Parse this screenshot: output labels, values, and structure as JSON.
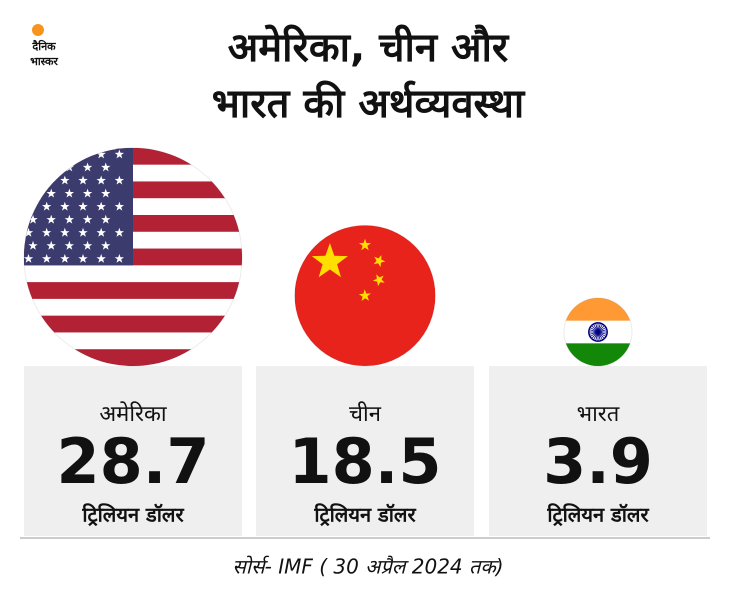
{
  "logo": [
    "दैनिक",
    "भास्कर"
  ],
  "chart_data": {
    "type": "bubble",
    "title": [
      "अमेरिका, चीन और",
      "भारत की अर्थव्यवस्था"
    ],
    "categories": [
      "अमेरिका",
      "चीन",
      "भारत"
    ],
    "values": [
      28.7,
      18.5,
      3.9
    ],
    "unit": "ट्रिलियन डॉलर",
    "source": "सोर्स- IMF ( 30 अप्रैल 2024 तक)"
  }
}
